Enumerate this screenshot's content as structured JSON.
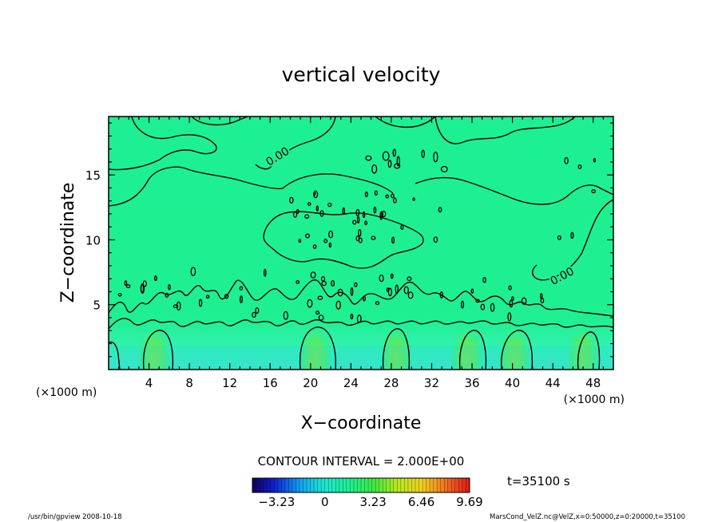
{
  "chart_data": {
    "type": "heatmap",
    "title": "vertical velocity",
    "xlabel": "X−coordinate",
    "ylabel": "Z−coordinate",
    "x_unit_left": "(×1000 m)",
    "x_unit_right": "(×1000 m)",
    "xlim": [
      0,
      50
    ],
    "ylim": [
      0,
      19.5
    ],
    "x_ticks": [
      4,
      8,
      12,
      16,
      20,
      24,
      28,
      32,
      36,
      40,
      44,
      48
    ],
    "y_ticks": [
      5,
      10,
      15
    ],
    "contour_interval_label": "CONTOUR INTERVAL = 2.000E+00",
    "contour_labels": [
      "0.00",
      "0.00"
    ],
    "colorbar": {
      "min": -4.85,
      "max": 9.69,
      "tick_values": [
        -3.23,
        0,
        3.23,
        6.46,
        9.69
      ],
      "tick_labels": [
        "−3.23",
        "0",
        "3.23",
        "6.46",
        "9.69"
      ]
    },
    "time_label": "t=35100 s",
    "grid": false,
    "updraft_columns_x": [
      4.5,
      20.5,
      28.5,
      35.5,
      40.2,
      47.0
    ]
  },
  "footer": {
    "left": "/usr/bin/gpview   2008-10-18",
    "right": "MarsCond_VelZ.nc@VelZ,x=0:50000,z=0:20000,t=35100"
  }
}
